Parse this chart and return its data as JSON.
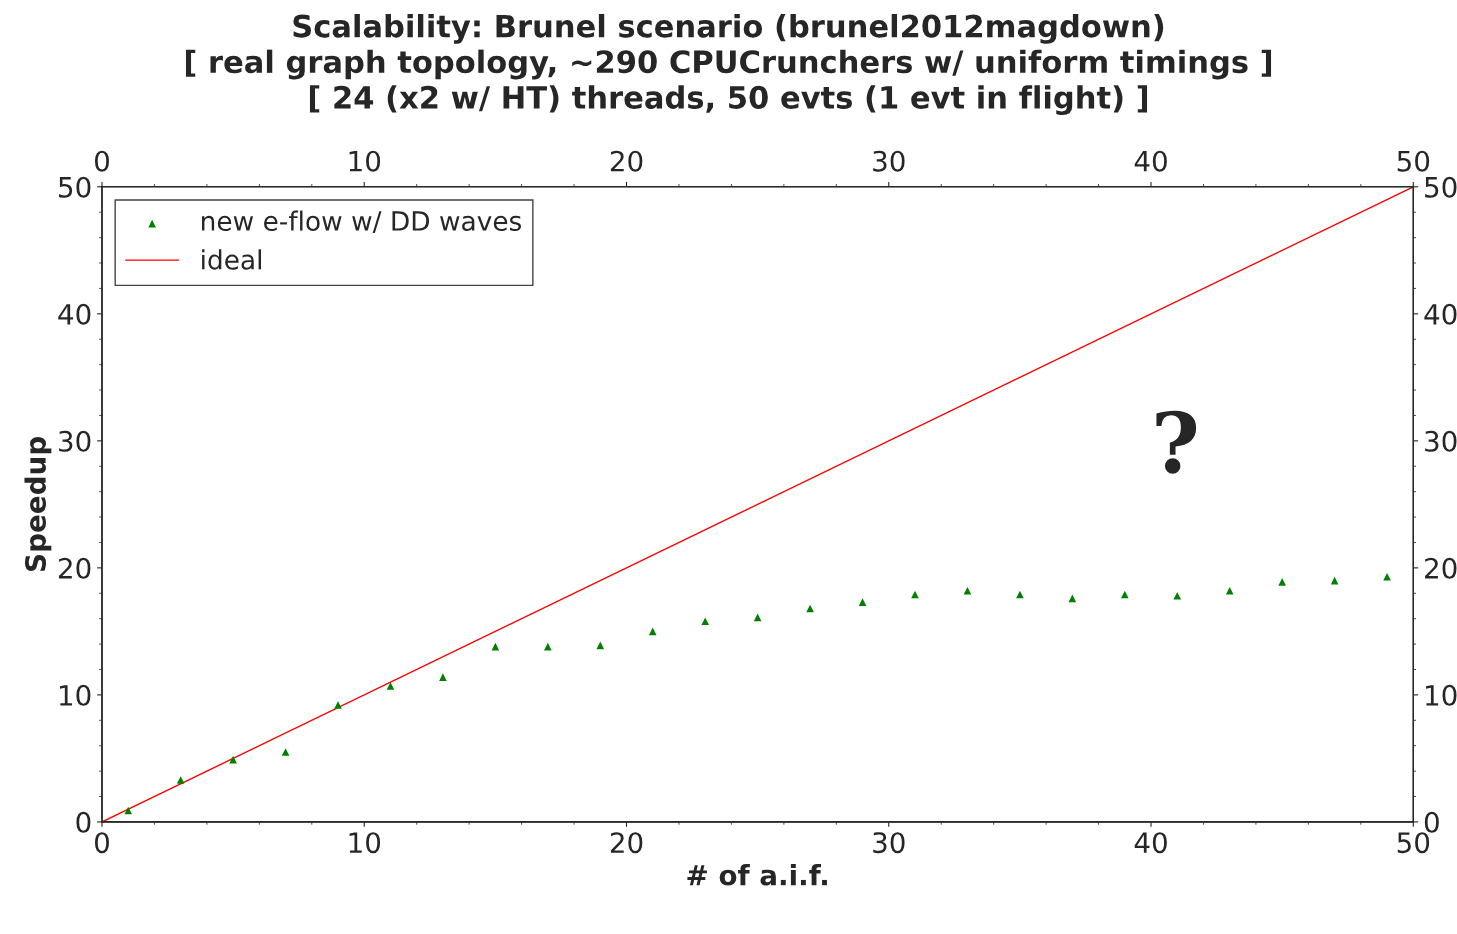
{
  "chart_data": {
    "type": "scatter",
    "title": "Scalability: Brunel scenario (brunel2012magdown)\n[ real graph topology, ~290 CPUCrunchers w/ uniform timings ]\n[ 24 (x2 w/ HT) threads, 50 evts (1 evt in flight) ]",
    "xlabel": "# of a.i.f.",
    "ylabel": "Speedup",
    "annotations": [
      "?"
    ],
    "x": [
      1,
      3,
      5,
      7,
      9,
      11,
      13,
      15,
      17,
      19,
      21,
      23,
      25,
      27,
      29,
      31,
      33,
      35,
      37,
      39,
      41,
      43,
      45,
      47,
      49
    ],
    "series": [
      {
        "name": "new e-flow w/ DD waves",
        "type": "scatter",
        "color": "#008000",
        "marker": "triangle",
        "values": [
          0.9,
          3.3,
          4.9,
          5.5,
          9.2,
          10.7,
          11.4,
          13.8,
          13.8,
          13.9,
          15.0,
          15.8,
          16.1,
          16.8,
          17.3,
          17.9,
          18.2,
          17.9,
          17.6,
          17.9,
          17.8,
          18.2,
          18.9,
          19.0,
          19.3
        ]
      },
      {
        "name": "ideal",
        "type": "line",
        "color": "#ff0000",
        "x": [
          0,
          50
        ],
        "values": [
          0,
          50
        ],
        "line_style": "solid",
        "marker": "none"
      }
    ],
    "xlim": [
      0,
      50
    ],
    "xticks": [
      0,
      10,
      20,
      30,
      40,
      50
    ],
    "x2lim": [
      0,
      50
    ],
    "x2ticks": [
      0,
      10,
      20,
      30,
      40,
      50
    ],
    "ylim": [
      0,
      50
    ],
    "yticks": [
      0,
      10,
      20,
      30,
      40,
      50
    ],
    "y2lim": [
      0,
      50
    ],
    "y2ticks": [
      0,
      10,
      20,
      30,
      40,
      50
    ],
    "grid": false,
    "legend": "top left"
  }
}
